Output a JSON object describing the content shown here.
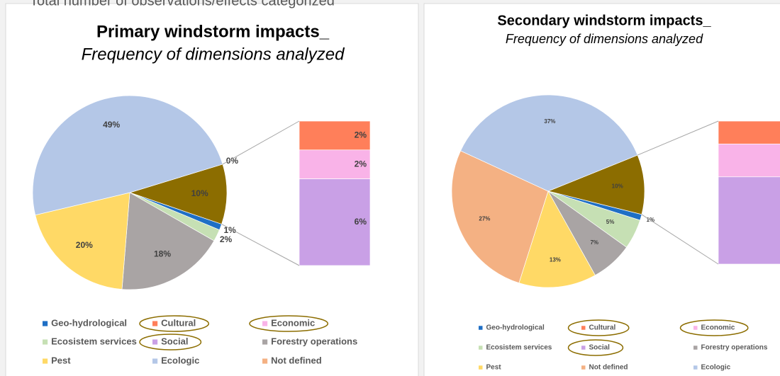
{
  "header": {
    "text": "Total number of observations/effects categorized"
  },
  "chart_data": [
    {
      "type": "pie",
      "title": "Primary windstorm impacts_",
      "subtitle": "Frequency of dimensions analyzed",
      "series": [
        {
          "name": "Geo-hydrological",
          "color": "#1f6fc5",
          "value": 1,
          "value_label": "1%"
        },
        {
          "name": "Cultural",
          "color": "#ff7f5a",
          "value": 2,
          "value_label": "2%"
        },
        {
          "name": "Economic",
          "color": "#f9b3e8",
          "value": 2,
          "value_label": "2%"
        },
        {
          "name": "Ecosistem services",
          "color": "#c6e0b4",
          "value": 2,
          "value_label": "2%"
        },
        {
          "name": "Social",
          "color": "#c9a0e6",
          "value": 6,
          "value_label": "6%"
        },
        {
          "name": "Forestry operations",
          "color": "#a9a4a4",
          "value": 18,
          "value_label": "18%"
        },
        {
          "name": "Pest",
          "color": "#ffd966",
          "value": 20,
          "value_label": "20%"
        },
        {
          "name": "Ecologic",
          "color": "#b4c7e7",
          "value": 49,
          "value_label": "49%"
        },
        {
          "name": "Not defined",
          "color": "#f4b183",
          "value": 0,
          "value_label": "0%"
        }
      ],
      "other_value": 10,
      "other_label": "10%",
      "other_color": "#8c6d00"
    },
    {
      "type": "pie",
      "title": "Secondary windstorm impacts_",
      "subtitle": "Frequency of dimensions analyzed",
      "series": [
        {
          "name": "Geo-hydrological",
          "color": "#1f6fc5",
          "value": 1,
          "value_label": "1%"
        },
        {
          "name": "Cultural",
          "color": "#ff7f5a",
          "value": 1.6
        },
        {
          "name": "Economic",
          "color": "#f9b3e8",
          "value": 2.3
        },
        {
          "name": "Ecosistem services",
          "color": "#c6e0b4",
          "value": 5,
          "value_label": "5%"
        },
        {
          "name": "Social",
          "color": "#c9a0e6",
          "value": 6.1
        },
        {
          "name": "Forestry operations",
          "color": "#a9a4a4",
          "value": 7,
          "value_label": "7%"
        },
        {
          "name": "Pest",
          "color": "#ffd966",
          "value": 13,
          "value_label": "13%"
        },
        {
          "name": "Not defined",
          "color": "#f4b183",
          "value": 27,
          "value_label": "27%"
        },
        {
          "name": "Ecologic",
          "color": "#b4c7e7",
          "value": 37,
          "value_label": "37%"
        }
      ],
      "other_value": 10,
      "other_label": "10%",
      "other_color": "#8c6d00"
    }
  ]
}
